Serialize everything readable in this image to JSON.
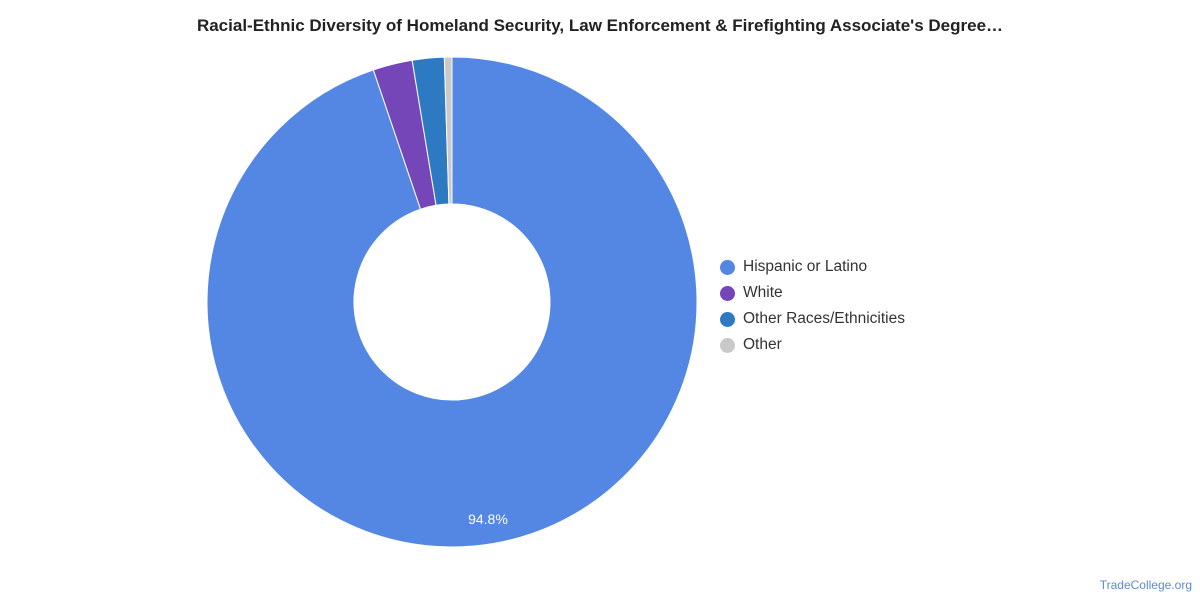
{
  "chart_data": {
    "type": "pie",
    "donut": true,
    "title": "Racial-Ethnic Diversity of Homeland Security, Law Enforcement & Firefighting Associate's Degree…",
    "categories": [
      "Hispanic or Latino",
      "White",
      "Other Races/Ethnicities",
      "Other"
    ],
    "values": [
      94.8,
      2.6,
      2.1,
      0.5
    ],
    "unit": "%",
    "colors": [
      "#5486e3",
      "#7446b8",
      "#2d7ac2",
      "#c9c9c9"
    ],
    "data_labels": [
      "94.8%",
      "",
      "",
      ""
    ],
    "legend_position": "right"
  },
  "source": "TradeCollege.org"
}
